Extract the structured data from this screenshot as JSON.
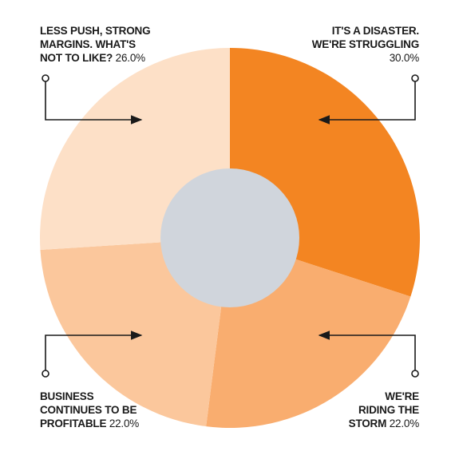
{
  "chart_data": {
    "type": "pie",
    "style": "donut",
    "slices": [
      {
        "label": "IT'S A DISASTER. WE'RE STRUGGLING",
        "label_lines": [
          "IT'S A DISASTER.",
          "WE'RE STRUGGLING"
        ],
        "value": 30.0,
        "value_text": "30.0%",
        "color": "#f38522"
      },
      {
        "label": "WE'RE RIDING THE STORM",
        "label_lines": [
          "WE'RE",
          "RIDING THE",
          "STORM"
        ],
        "value": 22.0,
        "value_text": "22.0%",
        "color": "#f9ad6f"
      },
      {
        "label": "BUSINESS CONTINUES TO BE PROFITABLE",
        "label_lines": [
          "BUSINESS",
          "CONTINUES TO BE",
          "PROFITABLE"
        ],
        "value": 22.0,
        "value_text": "22.0%",
        "color": "#fbc79c"
      },
      {
        "label": "LESS PUSH, STRONG MARGINS. WHAT'S NOT TO LIKE?",
        "label_lines": [
          "LESS PUSH, STRONG",
          "MARGINS. WHAT'S",
          "NOT TO LIKE?"
        ],
        "value": 26.0,
        "value_text": "26.0%",
        "color": "#fde0c7"
      }
    ],
    "center_color": "#d0d5dc",
    "connector_color": "#1a1a1a"
  }
}
